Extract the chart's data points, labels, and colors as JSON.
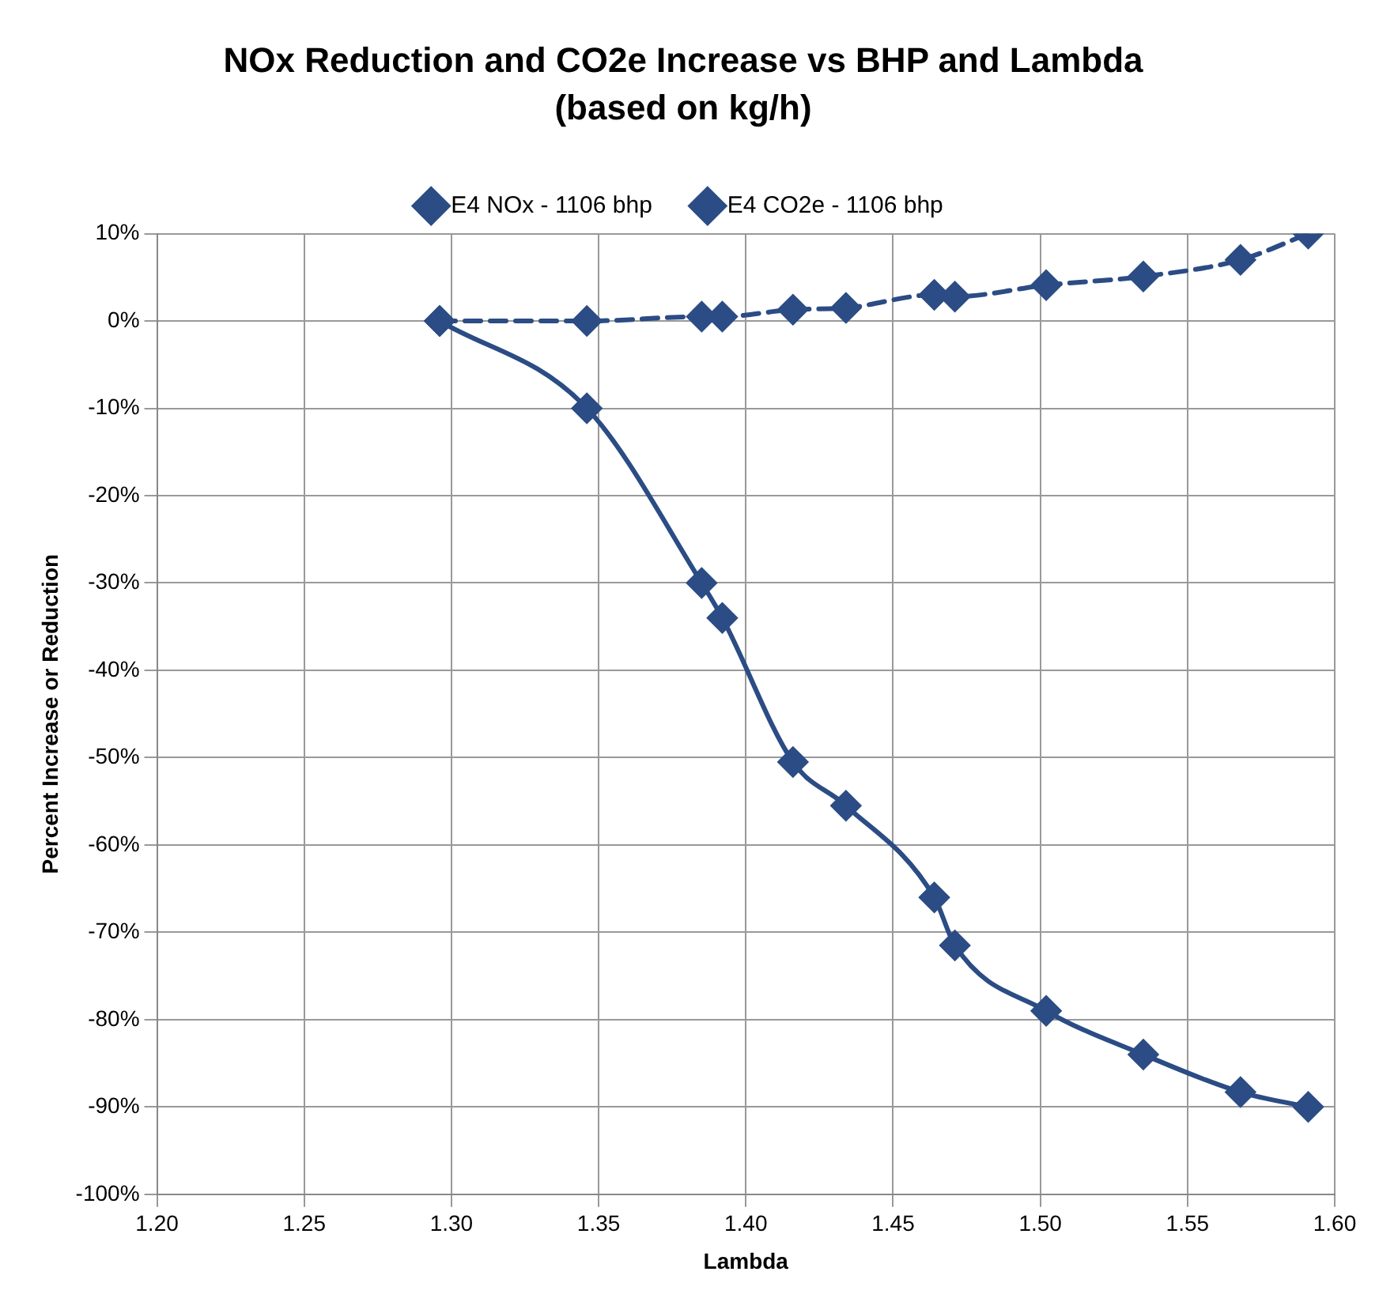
{
  "chart_data": {
    "type": "line",
    "title": "NOx Reduction and CO2e Increase vs BHP and Lambda",
    "subtitle": "(based on kg/h)",
    "xlabel": "Lambda",
    "ylabel": "Percent Increase or Reduction",
    "series": [
      {
        "name": "E4 NOx - 1106 bhp",
        "color": "#2b4c84",
        "line_style": "solid",
        "x": [
          1.296,
          1.346,
          1.385,
          1.392,
          1.416,
          1.434,
          1.464,
          1.471,
          1.502,
          1.535,
          1.568,
          1.591
        ],
        "values": [
          0,
          -10,
          -30,
          -34,
          -50.5,
          -55.5,
          -66,
          -71.5,
          -79,
          -84,
          -88.3,
          -90
        ]
      },
      {
        "name": "E4 CO2e - 1106 bhp",
        "color": "#2b4c84",
        "line_style": "dashed",
        "x": [
          1.296,
          1.346,
          1.385,
          1.392,
          1.416,
          1.434,
          1.464,
          1.471,
          1.502,
          1.535,
          1.568,
          1.591
        ],
        "values": [
          0,
          0,
          0.5,
          0.5,
          1.3,
          1.5,
          3,
          2.8,
          4.1,
          5.1,
          7,
          10
        ]
      }
    ],
    "xlim": [
      1.2,
      1.6
    ],
    "xticks": [
      {
        "value": 1.2,
        "label": "1.20"
      },
      {
        "value": 1.25,
        "label": "1.25"
      },
      {
        "value": 1.3,
        "label": "1.30"
      },
      {
        "value": 1.35,
        "label": "1.35"
      },
      {
        "value": 1.4,
        "label": "1.40"
      },
      {
        "value": 1.45,
        "label": "1.45"
      },
      {
        "value": 1.5,
        "label": "1.50"
      },
      {
        "value": 1.55,
        "label": "1.55"
      },
      {
        "value": 1.6,
        "label": "1.60"
      }
    ],
    "ylim": [
      -100,
      10
    ],
    "yticks": [
      {
        "value": -100,
        "label": "-100%"
      },
      {
        "value": -90,
        "label": "-90%"
      },
      {
        "value": -80,
        "label": "-80%"
      },
      {
        "value": -70,
        "label": "-70%"
      },
      {
        "value": -60,
        "label": "-60%"
      },
      {
        "value": -50,
        "label": "-50%"
      },
      {
        "value": -40,
        "label": "-40%"
      },
      {
        "value": -30,
        "label": "-30%"
      },
      {
        "value": -20,
        "label": "-20%"
      },
      {
        "value": -10,
        "label": "-10%"
      },
      {
        "value": 0,
        "label": "0%"
      },
      {
        "value": 10,
        "label": "10%"
      }
    ],
    "grid": true,
    "legend": "top",
    "marker": "diamond"
  }
}
